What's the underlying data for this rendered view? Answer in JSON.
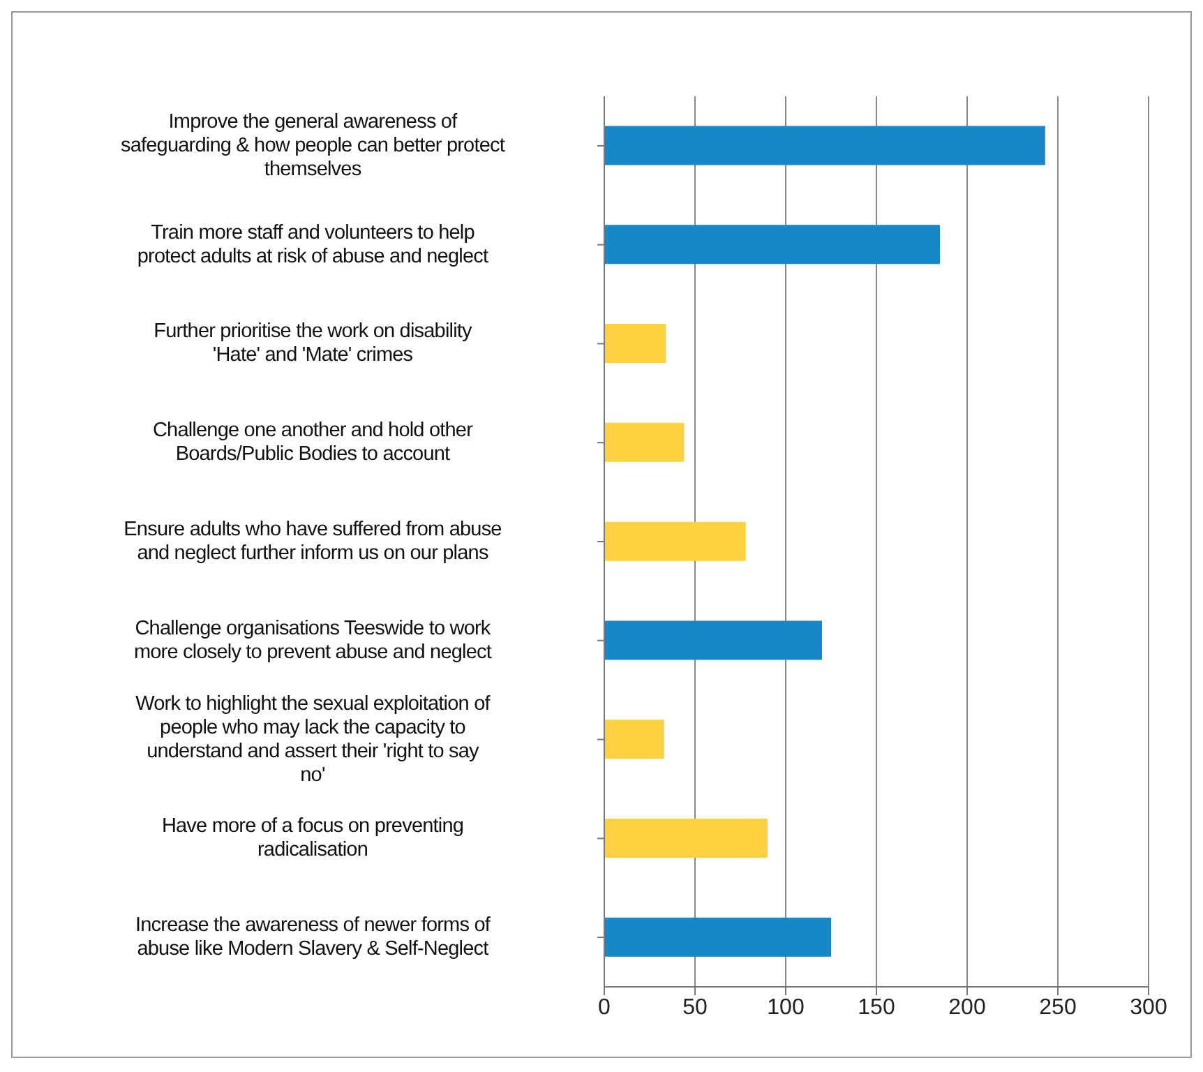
{
  "chart_data": {
    "type": "bar",
    "orientation": "horizontal",
    "categories": [
      "Improve the general awareness of safeguarding & how people can better protect themselves",
      "Train more staff and volunteers to help protect adults at risk of abuse and neglect",
      "Further prioritise the work on disability 'Hate' and 'Mate' crimes",
      "Challenge one another and hold other Boards/Public Bodies to account",
      "Ensure adults who have suffered from abuse and neglect further inform us on our plans",
      "Challenge organisations Teeswide to work more closely to prevent abuse and neglect",
      "Work to highlight the sexual exploitation of people who may lack the capacity to understand and assert their 'right to say no'",
      "Have more of a focus on preventing radicalisation",
      "Increase the awareness of newer forms of abuse like Modern Slavery & Self-Neglect"
    ],
    "values": [
      243,
      185,
      34,
      44,
      78,
      120,
      33,
      90,
      125
    ],
    "colors": [
      "#1787c8",
      "#1787c8",
      "#fdd240",
      "#fdd240",
      "#fdd240",
      "#1787c8",
      "#fdd240",
      "#fdd240",
      "#1787c8"
    ],
    "xlim": [
      0,
      300
    ],
    "xticks": [
      0,
      50,
      100,
      150,
      200,
      250,
      300
    ],
    "grid": "x"
  }
}
